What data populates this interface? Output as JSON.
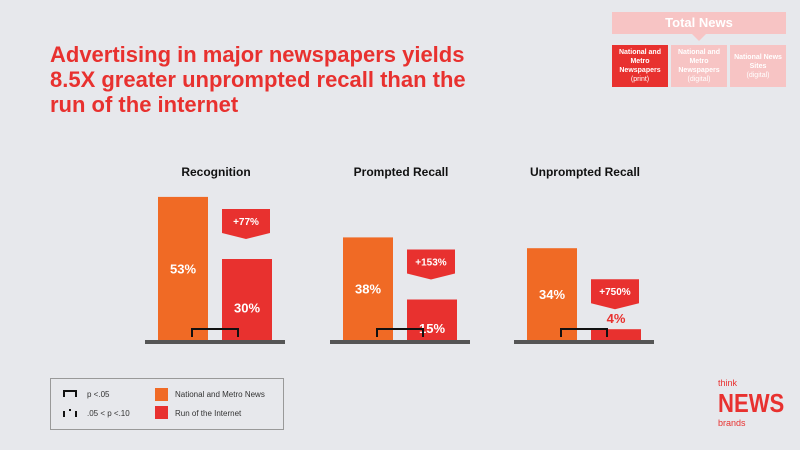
{
  "title": "Advertising in major newspapers yields 8.5X greater unprompted recall than the run of the internet",
  "nav": {
    "total": "Total News",
    "boxes": [
      {
        "label": "National and Metro Newspapers",
        "sub": "(print)",
        "active": true
      },
      {
        "label": "National and Metro Newspapers",
        "sub": "(digital)",
        "active": false
      },
      {
        "label": "National News Sites",
        "sub": "(digital)",
        "active": false
      }
    ]
  },
  "legend": {
    "sig1": "p <.05",
    "sig2": ".05 < p <.10",
    "s1": "National and Metro News",
    "s2": "Run of the Internet"
  },
  "logo": {
    "think": "think",
    "news": "NEWS",
    "brands": "brands"
  },
  "colors": {
    "s1": "#f06a25",
    "s2": "#e8312f"
  },
  "chart_data": {
    "type": "bar",
    "categories": [
      "Recognition",
      "Prompted Recall",
      "Unprompted Recall"
    ],
    "series": [
      {
        "name": "National and Metro News",
        "values": [
          53,
          38,
          34
        ]
      },
      {
        "name": "Run of the Internet",
        "values": [
          30,
          15,
          4
        ]
      }
    ],
    "lift": [
      "+77%",
      "+153%",
      "+750%"
    ],
    "significance": [
      "p <.05",
      "p <.05",
      "p <.05"
    ],
    "ylim": [
      0,
      60
    ]
  }
}
